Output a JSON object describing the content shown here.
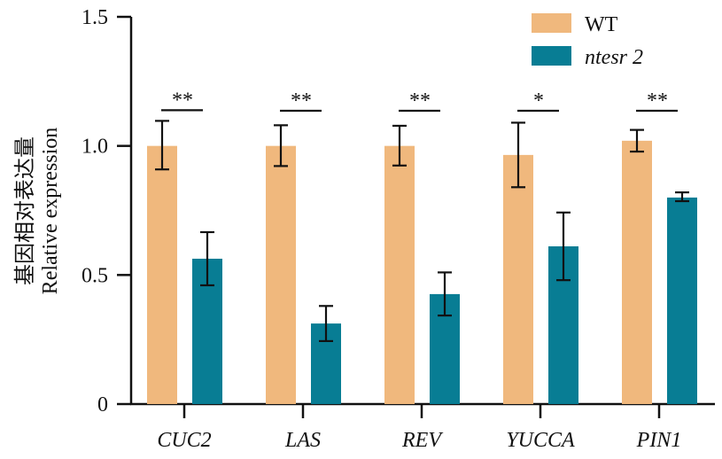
{
  "chart_data": {
    "type": "bar",
    "title": "",
    "xlabel": "",
    "ylabel_lines": [
      "基因相对表达量",
      "Relative expression"
    ],
    "ylim": [
      0,
      1.5
    ],
    "yticks": [
      0,
      0.5,
      1.0,
      1.5
    ],
    "ytick_labels": [
      "0",
      "0.5",
      "1.0",
      "1.5"
    ],
    "categories": [
      "CUC2",
      "LAS",
      "REV",
      "YUCCA",
      "PIN1"
    ],
    "series": [
      {
        "name": "WT",
        "italic": false,
        "color": "#F0B87D",
        "values": [
          1.0,
          1.0,
          1.0,
          0.965,
          1.02
        ],
        "error_upper": [
          1.097,
          1.08,
          1.078,
          1.09,
          1.062
        ],
        "error_lower": [
          0.909,
          0.922,
          0.924,
          0.84,
          0.978
        ]
      },
      {
        "name": "ntesr 2",
        "italic": true,
        "color": "#087D94",
        "values": [
          0.563,
          0.312,
          0.426,
          0.611,
          0.8
        ],
        "error_upper": [
          0.666,
          0.38,
          0.51,
          0.742,
          0.82
        ],
        "error_lower": [
          0.46,
          0.244,
          0.343,
          0.48,
          0.786
        ]
      }
    ],
    "significance": [
      "**",
      "**",
      "**",
      "*",
      "**"
    ],
    "legend": {
      "position": "top-right",
      "entries": [
        "WT",
        "ntesr 2"
      ]
    },
    "grid": false
  }
}
